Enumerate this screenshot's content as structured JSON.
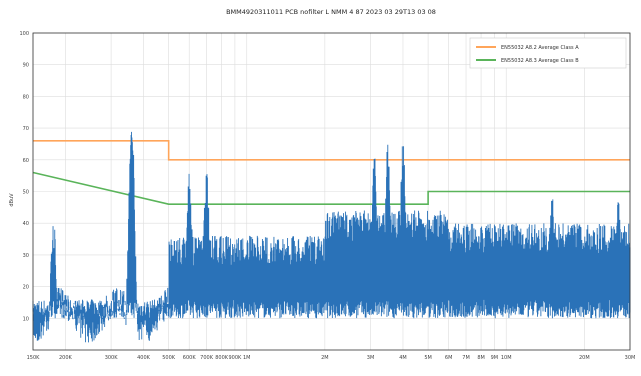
{
  "chart_data": {
    "type": "line",
    "title": "BMM4920311011 PCB nofilter L NMM 4 87 2023 03 29T13 03 08",
    "xlabel": "",
    "ylabel": "dBuV",
    "xscale": "log",
    "xlim": [
      150000,
      30000000
    ],
    "ylim": [
      0,
      100
    ],
    "yticks": [
      10,
      20,
      30,
      40,
      50,
      60,
      70,
      80,
      90,
      100
    ],
    "ytick_labels": [
      "10",
      "20",
      "30",
      "40",
      "50",
      "60",
      "70",
      "80",
      "90",
      "100"
    ],
    "xticks": [
      150000,
      200000,
      300000,
      400000,
      500000,
      600000,
      700000,
      800000,
      900000,
      1000000,
      2000000,
      3000000,
      4000000,
      5000000,
      6000000,
      7000000,
      8000000,
      9000000,
      10000000,
      20000000,
      30000000
    ],
    "xtick_labels": [
      "150K",
      "200K",
      "300K",
      "400K",
      "500K",
      "600K",
      "700K",
      "800K",
      "900K",
      "1M",
      "2M",
      "3M",
      "4M",
      "5M",
      "6M",
      "7M",
      "8M",
      "9M",
      "10M",
      "20M",
      "30M"
    ],
    "grid": true,
    "legend_position": "top-right",
    "series": [
      {
        "name": "EN55032 A8.2 Average Class A",
        "color": "#ffa55a",
        "x": [
          150000,
          500000,
          500000,
          30000000
        ],
        "y": [
          66,
          66,
          60,
          60
        ]
      },
      {
        "name": "EN55032 A8.3 Average Class B",
        "color": "#5ab45a",
        "x": [
          150000,
          500000,
          5000000,
          5000000,
          30000000
        ],
        "y": [
          56,
          46,
          46,
          50,
          50
        ]
      }
    ],
    "measurement": {
      "color": "#2a72b8",
      "peaks": [
        {
          "x": 180000,
          "y": 41
        },
        {
          "x": 360000,
          "y": 76
        },
        {
          "x": 600000,
          "y": 58
        },
        {
          "x": 700000,
          "y": 58
        },
        {
          "x": 3100000,
          "y": 64
        },
        {
          "x": 3500000,
          "y": 67
        },
        {
          "x": 4000000,
          "y": 66
        },
        {
          "x": 15000000,
          "y": 50
        },
        {
          "x": 27000000,
          "y": 52
        }
      ],
      "baseline": 10
    }
  }
}
